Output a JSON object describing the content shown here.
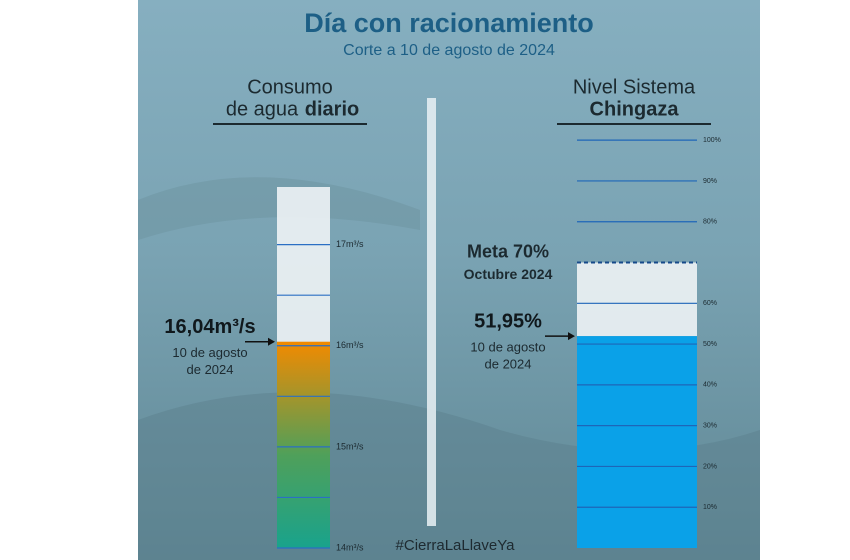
{
  "title": "Día con racionamiento",
  "subtitle": "Corte a 10 de agosto de 2024",
  "hashtag": "#CierraLaLlaveYa",
  "chart_data": [
    {
      "type": "gauge",
      "title_light": [
        "Consumo",
        "de agua"
      ],
      "title_bold": "diario",
      "value": 16.04,
      "value_label": "16,04m³/s",
      "value_note": [
        "10 de agosto",
        "de 2024"
      ],
      "ylim": [
        14,
        17.57
      ],
      "yticks": [
        {
          "value": 14,
          "label": "14m³/s"
        },
        {
          "value": 15,
          "label": "15m³/s"
        },
        {
          "value": 16,
          "label": "16m³/s"
        },
        {
          "value": 17,
          "label": "17m³/s"
        }
      ],
      "minor_ticks": [
        14.5,
        15.5,
        16.5
      ],
      "colors": [
        "#f28a00",
        "#19a38c"
      ]
    },
    {
      "type": "gauge",
      "title_light": [
        "Nivel Sistema"
      ],
      "title_bold": "Chingaza",
      "value": 51.95,
      "value_label": "51,95%",
      "value_note": [
        "10 de agosto",
        "de 2024"
      ],
      "target": 70,
      "target_label": "Meta 70%",
      "target_note": "Octubre 2024",
      "ylim": [
        0,
        102
      ],
      "yticks": [
        {
          "value": 10,
          "label": "10%"
        },
        {
          "value": 20,
          "label": "20%"
        },
        {
          "value": 30,
          "label": "30%"
        },
        {
          "value": 40,
          "label": "40%"
        },
        {
          "value": 50,
          "label": "50%"
        },
        {
          "value": 60,
          "label": "60%"
        },
        {
          "value": 80,
          "label": "80%"
        },
        {
          "value": 90,
          "label": "90%"
        },
        {
          "value": 100,
          "label": "100%"
        }
      ],
      "colors": [
        "#0aa1e8"
      ]
    }
  ]
}
